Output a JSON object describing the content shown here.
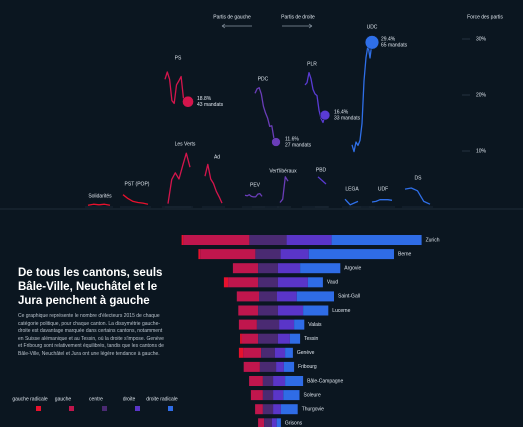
{
  "header": {
    "left_label": "Partis de gauche",
    "right_label": "Partis de droite",
    "force_label": "Force des partis"
  },
  "force_ticks": [
    {
      "value": 30,
      "label": "30%"
    },
    {
      "value": 20,
      "label": "20%"
    },
    {
      "value": 10,
      "label": "10%"
    }
  ],
  "parties": [
    {
      "name": "Solidarités",
      "color": "#e8112d",
      "values": [
        0.3,
        0.5,
        0.4,
        0.5,
        0.3
      ]
    },
    {
      "name": "PST (POP)",
      "color": "#e8112d",
      "values": [
        2.2,
        1.5,
        1.0,
        0.8,
        0.7,
        0.5
      ]
    },
    {
      "name": "PS",
      "color": "#d4154c",
      "values": [
        22.8,
        24.1,
        22.8,
        19.0,
        18.5,
        21.8,
        22.5,
        23.3,
        19.5,
        18.7,
        18.8
      ],
      "share_label": "18.8%",
      "seats": 43,
      "seats_label": "43 mandats"
    },
    {
      "name": "Les Verts",
      "color": "#d4154c",
      "values": [
        0.6,
        4.9,
        6.1,
        5.0,
        7.4,
        9.6,
        7.1
      ]
    },
    {
      "name": "Ad",
      "color": "#d4154c",
      "values": [
        5.5,
        7.6,
        5.0,
        4.2,
        2.8,
        1.8,
        0.7
      ]
    },
    {
      "name": "PEV",
      "color": "#6a3db8",
      "values": [
        2.1,
        2.0,
        2.2,
        1.9,
        1.8,
        1.8,
        2.3,
        2.4,
        1.9
      ]
    },
    {
      "name": "PDC",
      "color": "#6a3db8",
      "values": [
        20.3,
        21.1,
        21.3,
        20.2,
        18.0,
        16.8,
        15.9,
        14.4,
        14.5,
        12.3,
        11.6
      ],
      "share_label": "11.6%",
      "seats": 27,
      "seats_label": "27 mandats"
    },
    {
      "name": "Vert'libéraux",
      "color": "#6a3db8",
      "values": [
        0.8,
        1.4,
        5.4,
        4.6
      ]
    },
    {
      "name": "PLR",
      "color": "#5a3bd4",
      "values": [
        21.8,
        22.2,
        24.0,
        22.9,
        21.0,
        20.2,
        19.9,
        17.3,
        15.8,
        15.1,
        16.4
      ],
      "share_label": "16.4%",
      "seats": 33,
      "seats_label": "33 mandats"
    },
    {
      "name": "PBD",
      "color": "#5a3bd4",
      "values": [
        5.4,
        4.1
      ]
    },
    {
      "name": "LEGA",
      "color": "#2f6fe8",
      "values": [
        1.4,
        0.9,
        0.4,
        0.6,
        0.8,
        1.0
      ]
    },
    {
      "name": "UDC",
      "color": "#2f6fe8",
      "values": [
        11.1,
        9.9,
        11.6,
        11.0,
        11.9,
        14.9,
        22.5,
        26.7,
        28.9,
        26.6,
        29.4
      ],
      "share_label": "29.4%",
      "seats": 65,
      "seats_label": "65 mandats"
    },
    {
      "name": "UDF",
      "color": "#2f6fe8",
      "values": [
        0.9,
        1.0,
        1.3,
        1.3,
        1.3,
        1.2
      ]
    },
    {
      "name": "DS",
      "color": "#2f6fe8",
      "values": [
        3.2,
        3.4,
        2.9,
        1.0,
        0.5
      ]
    }
  ],
  "segments": [
    {
      "name": "gauche radicale",
      "color": "#e8112d"
    },
    {
      "name": "gauche",
      "color": "#c0164d"
    },
    {
      "name": "centre",
      "color": "#4a2a72"
    },
    {
      "name": "droite",
      "color": "#5a35c8"
    },
    {
      "name": "droite radicale",
      "color": "#2f6ce6"
    }
  ],
  "cantons": [
    {
      "name": "Zurich",
      "values": [
        3,
        110,
        62,
        75,
        150
      ]
    },
    {
      "name": "Berne",
      "values": [
        3,
        92,
        42,
        47,
        142
      ]
    },
    {
      "name": "Argovie",
      "values": [
        0,
        42,
        33,
        37,
        67
      ]
    },
    {
      "name": "Vaud",
      "values": [
        7,
        50,
        33,
        50,
        25
      ]
    },
    {
      "name": "Saint-Gall",
      "values": [
        0,
        37,
        30,
        33,
        62
      ]
    },
    {
      "name": "Lucerne",
      "values": [
        0,
        33,
        33,
        42,
        42
      ]
    },
    {
      "name": "Valais",
      "values": [
        0,
        30,
        37,
        25,
        17
      ]
    },
    {
      "name": "Tessin",
      "values": [
        3,
        27,
        33,
        20,
        17
      ]
    },
    {
      "name": "Genève",
      "values": [
        7,
        30,
        23,
        17,
        13
      ]
    },
    {
      "name": "Fribourg",
      "values": [
        0,
        27,
        27,
        13,
        17
      ]
    },
    {
      "name": "Bâle-Campagne",
      "values": [
        0,
        23,
        17,
        20,
        30
      ]
    },
    {
      "name": "Soleure",
      "values": [
        0,
        20,
        17,
        17,
        27
      ]
    },
    {
      "name": "Thurgovie",
      "values": [
        0,
        13,
        17,
        13,
        28
      ]
    },
    {
      "name": "Grisons",
      "values": [
        0,
        10,
        13,
        8,
        7
      ]
    }
  ],
  "title": "De tous les cantons, seuls Bâle-Ville, Neuchâtel et le Jura penchent à gauche",
  "description": "Ce graphique représente le nombre d'électeurs 2015 de chaque catégorie politique, pour chaque canton. La dissymétrie gauche-droite est davantage marquée dans certains cantons, notamment en Suisse alémanique et au Tessin, où la droite s'impose. Genève et Fribourg sont relativement équilibrés, tandis que les cantons de Bâle-Ville, Neuchâtel et Jura ont une légère tendance à gauche."
}
